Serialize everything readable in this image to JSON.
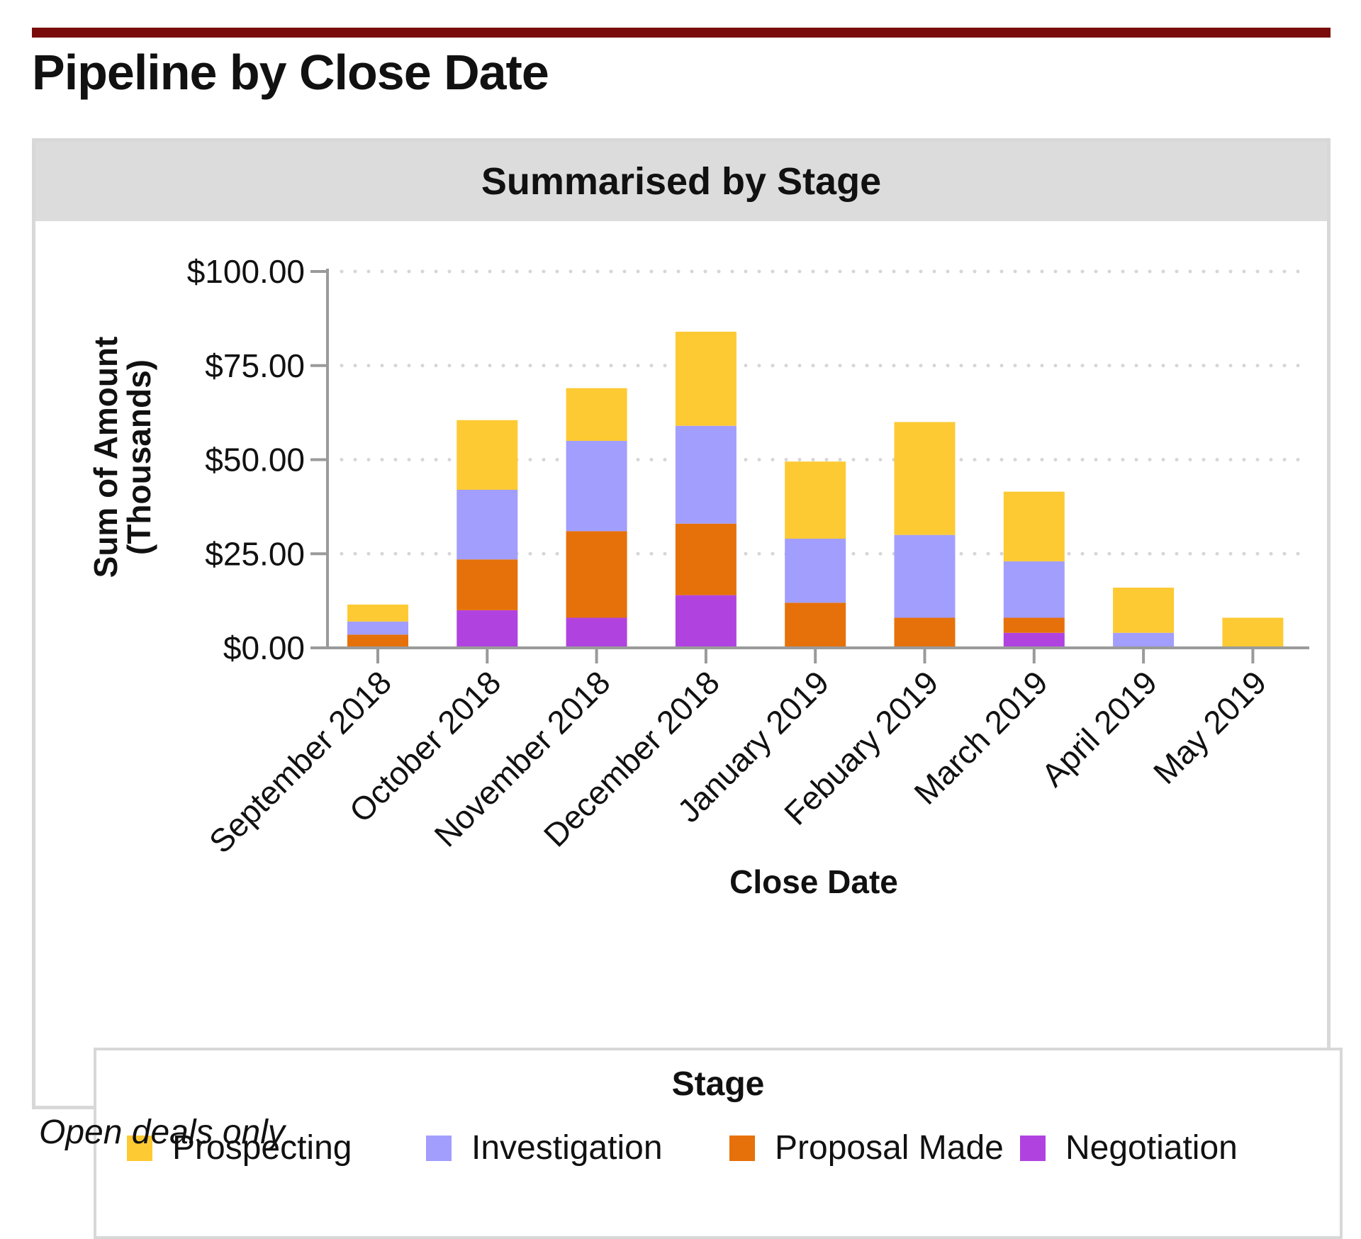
{
  "header": {
    "title": "Pipeline by Close Date"
  },
  "panel": {
    "title": "Summarised by Stage"
  },
  "footnote": "Open deals only",
  "colors": {
    "Prospecting": "#fdca34",
    "Investigation": "#a29efd",
    "Proposal Made": "#e6710a",
    "Negotiation": "#b043e0",
    "top_rule": "#7a0c0c"
  },
  "chart_data": {
    "type": "bar",
    "stacked": true,
    "title": "Summarised by Stage",
    "xlabel": "Close Date",
    "ylabel": "Sum of Amount",
    "ylabel2": "(Thousands)",
    "ylim": [
      0,
      100
    ],
    "yticks": [
      0,
      25,
      50,
      75,
      100
    ],
    "ytick_labels": [
      "$0.00",
      "$25.00",
      "$50.00",
      "$75.00",
      "$100.00"
    ],
    "grid": "horizontal dotted",
    "categories": [
      "September 2018",
      "October 2018",
      "November 2018",
      "December 2018",
      "January 2019",
      "Febuary 2019",
      "March 2019",
      "April 2019",
      "May 2019"
    ],
    "series": [
      {
        "name": "Negotiation",
        "values": [
          0,
          10,
          8,
          14,
          0,
          0,
          4,
          0,
          0
        ]
      },
      {
        "name": "Proposal Made",
        "values": [
          3.5,
          13.5,
          23,
          19,
          12,
          8,
          4,
          0,
          0
        ]
      },
      {
        "name": "Investigation",
        "values": [
          3.5,
          18.5,
          24,
          26,
          17,
          22,
          15,
          4,
          0
        ]
      },
      {
        "name": "Prospecting",
        "values": [
          4.5,
          18.5,
          14,
          25,
          20.5,
          30,
          18.5,
          12,
          8
        ]
      }
    ],
    "legend": {
      "title": "Stage",
      "position": "bottom",
      "entries": [
        "Prospecting",
        "Investigation",
        "Proposal Made",
        "Negotiation"
      ]
    }
  }
}
